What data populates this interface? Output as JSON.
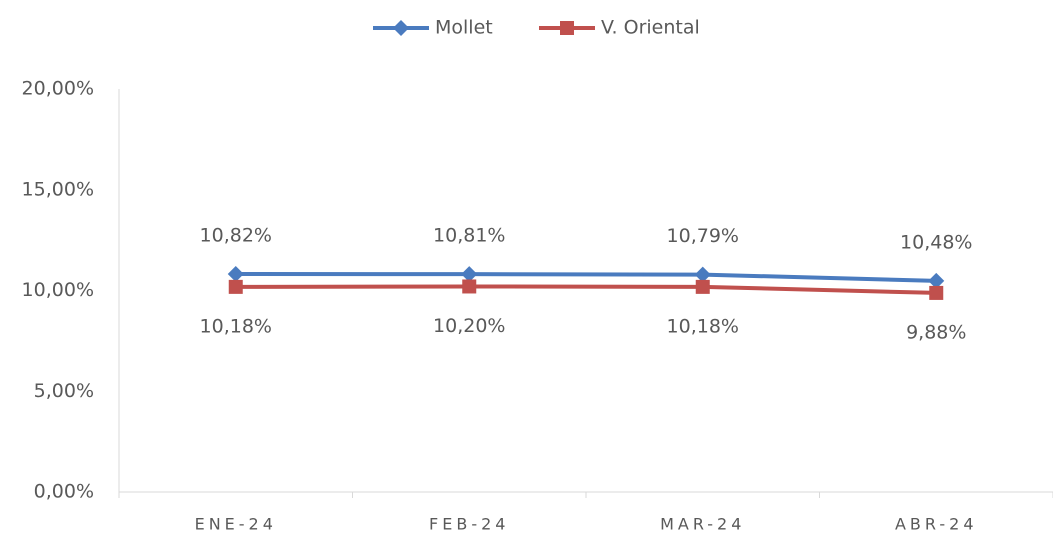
{
  "chart_data": {
    "type": "line",
    "categories": [
      "ENE-24",
      "FEB-24",
      "MAR-24",
      "ABR-24"
    ],
    "series": [
      {
        "name": "Mollet",
        "color": "#4a7bbf",
        "marker": "diamond",
        "label_position": "above",
        "values": [
          10.82,
          10.81,
          10.79,
          10.48
        ],
        "value_labels": [
          "10,82%",
          "10,81%",
          "10,79%",
          "10,48%"
        ]
      },
      {
        "name": "V. Oriental",
        "color": "#c0504d",
        "marker": "square",
        "label_position": "below",
        "values": [
          10.18,
          10.2,
          10.18,
          9.88
        ],
        "value_labels": [
          "10,18%",
          "10,20%",
          "10,18%",
          "9,88%"
        ]
      }
    ],
    "ylim": [
      0,
      20
    ],
    "yticks": [
      {
        "value": 0,
        "label": "0,00%"
      },
      {
        "value": 5,
        "label": "5,00%"
      },
      {
        "value": 10,
        "label": "10,00%"
      },
      {
        "value": 15,
        "label": "15,00%"
      },
      {
        "value": 20,
        "label": "20,00%"
      }
    ],
    "grid": false,
    "legend": "top"
  }
}
